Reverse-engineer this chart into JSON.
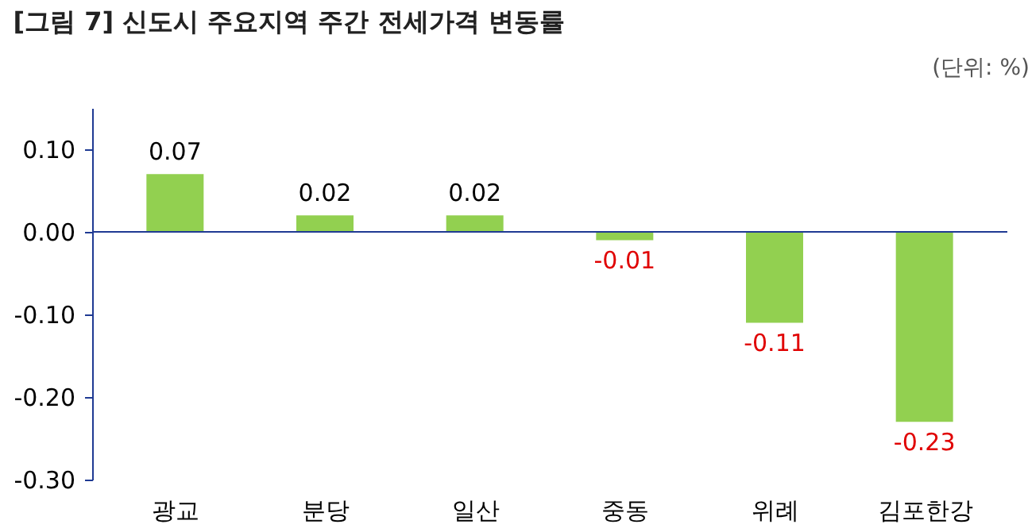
{
  "chart_data": {
    "type": "bar",
    "title": "[그림 7] 신도시 주요지역 주간 전세가격 변동률",
    "annotations": [
      "(단위: %)"
    ],
    "categories": [
      "광교",
      "분당",
      "일산",
      "중동",
      "위례",
      "김포한강"
    ],
    "values": [
      0.07,
      0.02,
      0.02,
      -0.01,
      -0.11,
      -0.23
    ],
    "color": "#92d050",
    "ylim": [
      -0.3,
      0.15
    ],
    "yticks": [
      {
        "value": -0.3,
        "label": "-0.30"
      },
      {
        "value": -0.2,
        "label": "-0.20"
      },
      {
        "value": -0.1,
        "label": "-0.10"
      },
      {
        "value": 0,
        "label": "0.00"
      },
      {
        "value": 0.1,
        "label": "0.10"
      }
    ],
    "ref_lines": [
      {
        "axis": "y",
        "value": 0,
        "color": "#1f3a93"
      }
    ],
    "value_labels": [
      "0.07",
      "0.02",
      "0.02",
      "-0.01",
      "-0.11",
      "-0.23"
    ],
    "grid": false
  }
}
